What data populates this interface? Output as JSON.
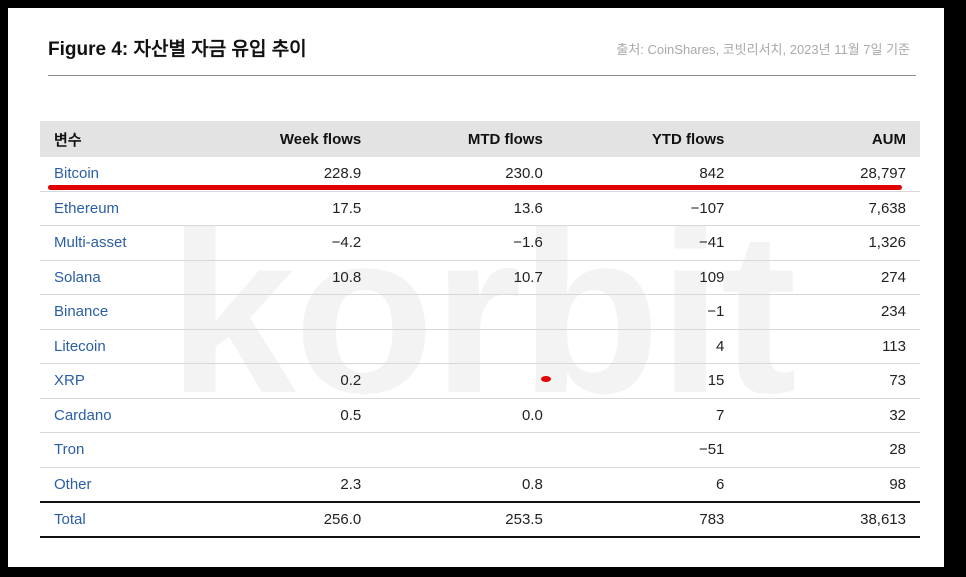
{
  "title": "Figure 4: 자산별 자금 유입 추이",
  "source": "출처: CoinShares, 코빗리서치, 2023년 11월 7일 기준",
  "watermark": "korbit",
  "table": {
    "headers": [
      "변수",
      "Week flows",
      "MTD flows",
      "YTD flows",
      "AUM"
    ],
    "rows": [
      {
        "asset": "Bitcoin",
        "week": "228.9",
        "mtd": "230.0",
        "ytd": "842",
        "aum": "28,797"
      },
      {
        "asset": "Ethereum",
        "week": "17.5",
        "mtd": "13.6",
        "ytd": "−107",
        "aum": "7,638"
      },
      {
        "asset": "Multi-asset",
        "week": "−4.2",
        "mtd": "−1.6",
        "ytd": "−41",
        "aum": "1,326"
      },
      {
        "asset": "Solana",
        "week": "10.8",
        "mtd": "10.7",
        "ytd": "109",
        "aum": "274"
      },
      {
        "asset": "Binance",
        "week": "",
        "mtd": "",
        "ytd": "−1",
        "aum": "234"
      },
      {
        "asset": "Litecoin",
        "week": "",
        "mtd": "",
        "ytd": "4",
        "aum": "113"
      },
      {
        "asset": "XRP",
        "week": "0.2",
        "mtd": "",
        "ytd": "15",
        "aum": "73"
      },
      {
        "asset": "Cardano",
        "week": "0.5",
        "mtd": "0.0",
        "ytd": "7",
        "aum": "32"
      },
      {
        "asset": "Tron",
        "week": "",
        "mtd": "",
        "ytd": "−51",
        "aum": "28"
      },
      {
        "asset": "Other",
        "week": "2.3",
        "mtd": "0.8",
        "ytd": "6",
        "aum": "98"
      }
    ],
    "total": {
      "asset": "Total",
      "week": "256.0",
      "mtd": "253.5",
      "ytd": "783",
      "aum": "38,613"
    }
  },
  "colors": {
    "asset_name": "#2b5ea6",
    "header_bg": "#e3e3e3",
    "annotation": "#e00000"
  }
}
